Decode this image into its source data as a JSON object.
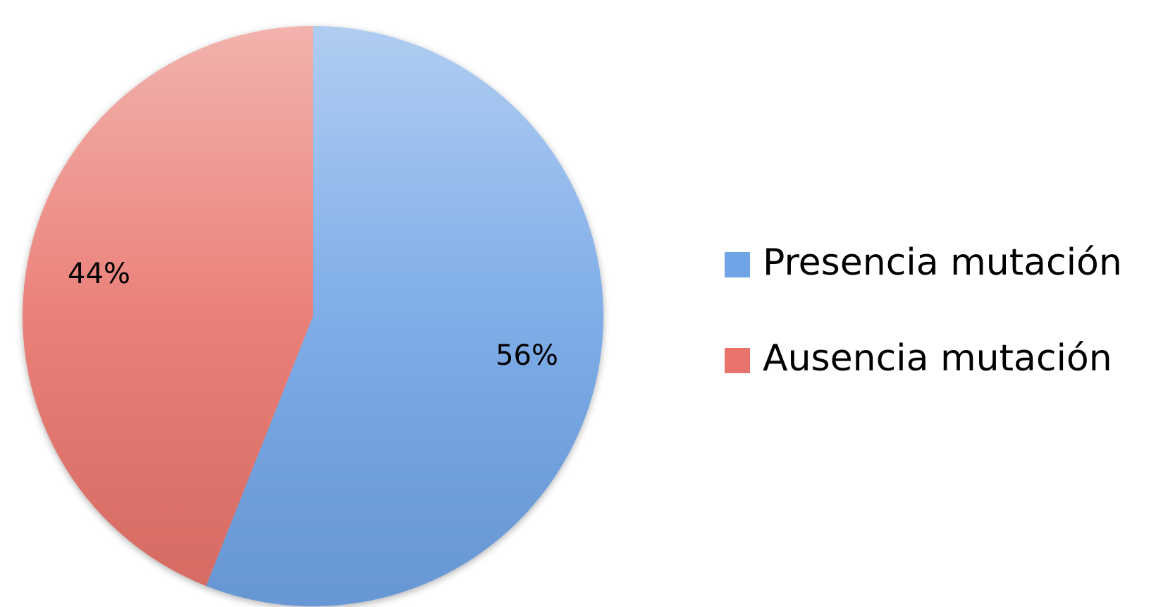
{
  "chart_data": {
    "type": "pie",
    "categories": [
      "Presencia mutación",
      "Ausencia mutación"
    ],
    "values": [
      56,
      44
    ],
    "value_labels": [
      "56%",
      "44%"
    ],
    "colors": [
      "#6fa4e6",
      "#e8736b"
    ],
    "legend": "right"
  }
}
